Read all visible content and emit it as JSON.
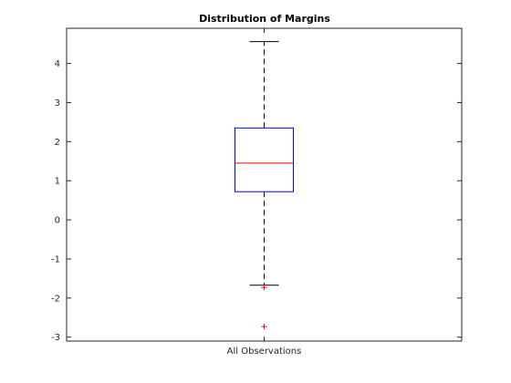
{
  "chart_data": {
    "type": "boxplot",
    "title": "Distribution of Margins",
    "xlabel": "",
    "ylabel": "",
    "categories": [
      "All Observations"
    ],
    "ylim": [
      -3.1,
      4.9
    ],
    "yticks": [
      -3,
      -2,
      -1,
      0,
      1,
      2,
      3,
      4
    ],
    "grid": false,
    "boxes": [
      {
        "category": "All Observations",
        "whisker_low": -1.67,
        "q1": 0.72,
        "median": 1.45,
        "q3": 2.35,
        "whisker_high": 4.56,
        "outliers": [
          -1.73,
          -2.73
        ]
      }
    ],
    "colors": {
      "box": "#0000ff",
      "median": "#ff0000",
      "whisker": "#000000",
      "outlier": "#ff0000",
      "axes": "#262626"
    }
  }
}
